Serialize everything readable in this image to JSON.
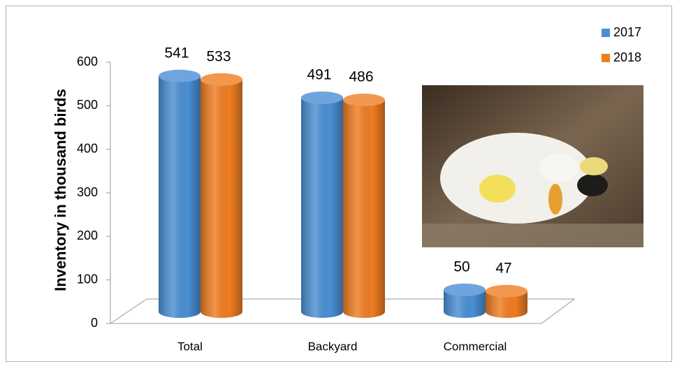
{
  "chart_data": {
    "type": "bar",
    "y_axis_label": "Inventory in thousand birds",
    "categories": [
      "Total",
      "Backyard",
      "Commercial"
    ],
    "series": [
      {
        "name": "2017",
        "color": "#4a8fd4",
        "values": [
          541,
          491,
          50
        ]
      },
      {
        "name": "2018",
        "color": "#ef7d22",
        "values": [
          533,
          486,
          47
        ]
      }
    ],
    "ylim": [
      0,
      600
    ],
    "yticks": [
      0,
      100,
      200,
      300,
      400,
      500,
      600
    ],
    "legend": "top-right"
  }
}
